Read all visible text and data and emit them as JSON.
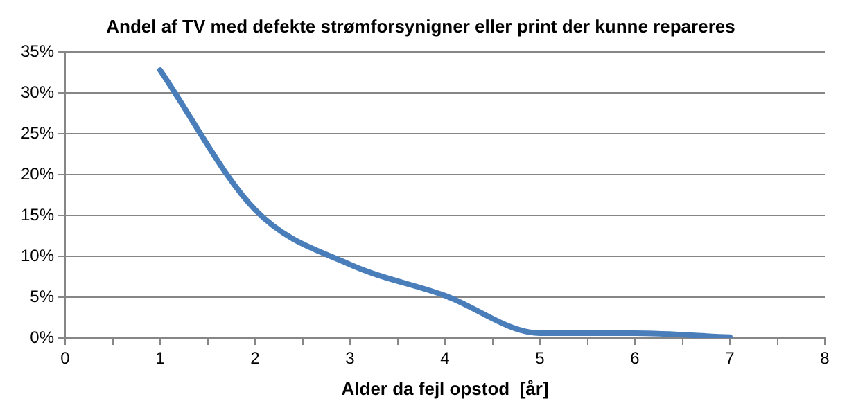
{
  "chart_data": {
    "type": "line",
    "title": "Andel af TV med defekte strømforsynigner eller print der kunne repareres",
    "xlabel": "Alder da fejl opstod  [år]",
    "x": [
      1,
      2,
      3,
      4,
      5,
      6,
      7
    ],
    "series": [
      {
        "color": "#4a7ebb",
        "values": [
          32.8,
          15.7,
          9,
          5.2,
          0.6,
          0.6,
          0.1
        ]
      }
    ],
    "xlim": [
      0,
      8
    ],
    "xticks": [
      0,
      {
        "value": 0.5,
        "label": null
      },
      1,
      {
        "value": 1.5,
        "label": null
      },
      2,
      {
        "value": 2.5,
        "label": null
      },
      3,
      {
        "value": 3.5,
        "label": null
      },
      4,
      {
        "value": 4.5,
        "label": null
      },
      5,
      {
        "value": 5.5,
        "label": null
      },
      6,
      {
        "value": 6.5,
        "label": null
      },
      7,
      {
        "value": 7.5,
        "label": null
      },
      8
    ],
    "ylim": [
      0,
      35
    ],
    "yticks": [
      {
        "value": 0,
        "label": "0%"
      },
      {
        "value": 5,
        "label": "5%"
      },
      {
        "value": 10,
        "label": "10%"
      },
      {
        "value": 15,
        "label": "15%"
      },
      {
        "value": 20,
        "label": "20%"
      },
      {
        "value": 25,
        "label": "25%"
      },
      {
        "value": 30,
        "label": "30%"
      },
      {
        "value": 35,
        "label": "35%"
      }
    ],
    "grid": "y",
    "legend": false,
    "marker": "none",
    "line_style": "solid"
  }
}
